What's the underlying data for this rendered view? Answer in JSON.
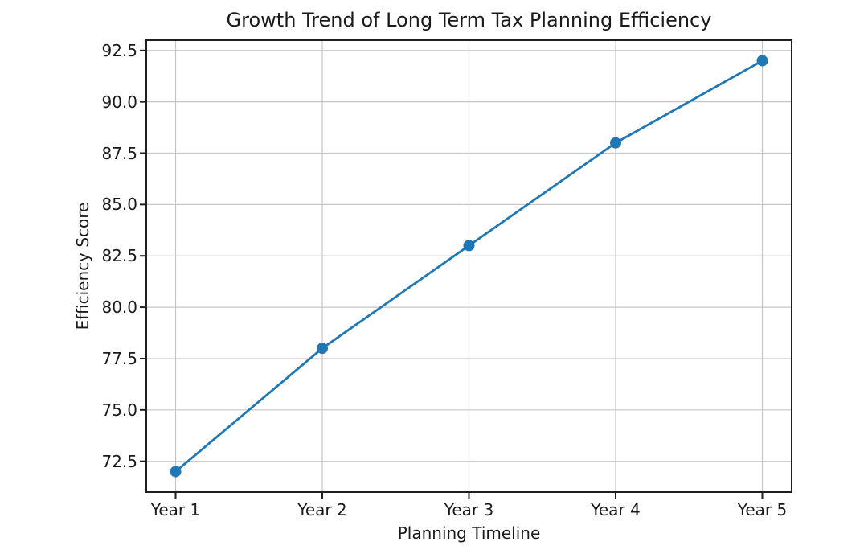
{
  "chart_data": {
    "type": "line",
    "title": "Growth Trend of Long Term Tax Planning Efficiency",
    "xlabel": "Planning Timeline",
    "ylabel": "Efficiency Score",
    "categories": [
      "Year 1",
      "Year 2",
      "Year 3",
      "Year 4",
      "Year 5"
    ],
    "series": [
      {
        "name": "Efficiency Score",
        "values": [
          72,
          78,
          83,
          88,
          92
        ]
      }
    ],
    "yticks": [
      72.5,
      75.0,
      77.5,
      80.0,
      82.5,
      85.0,
      87.5,
      90.0,
      92.5
    ],
    "ylim": [
      71,
      93
    ],
    "grid": true,
    "legend_position": "none",
    "line_color": "#1f77b4",
    "marker": "circle",
    "grid_color": "#c6c6c6",
    "spine_color": "#1f1f1f",
    "text_color": "#1a1a1a"
  }
}
